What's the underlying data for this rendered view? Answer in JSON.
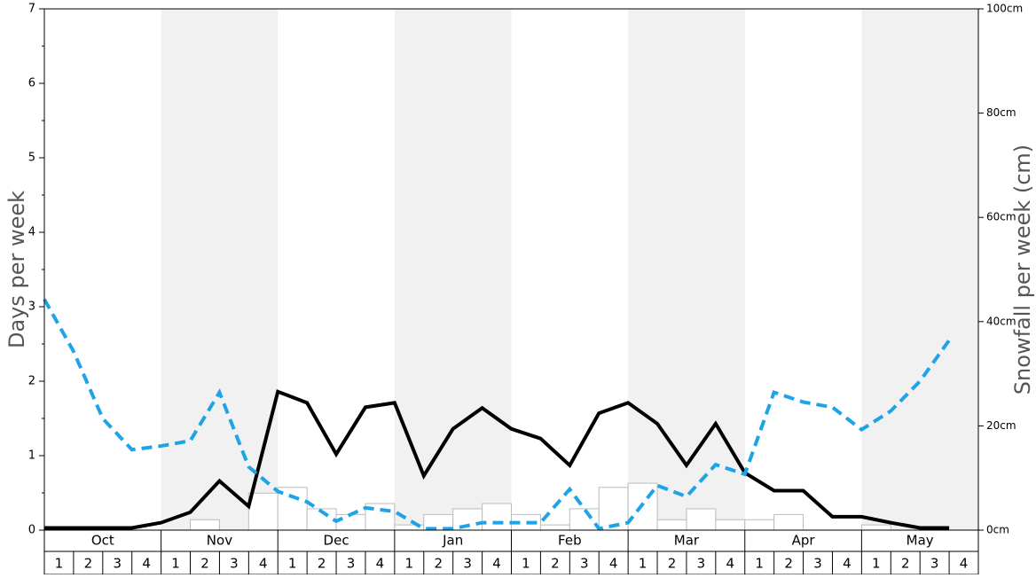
{
  "chart_data": {
    "type": "combo",
    "ylabel": "Days per week",
    "y2label": "Snowfall per week (cm)",
    "months": [
      "Oct",
      "Nov",
      "Dec",
      "Jan",
      "Feb",
      "Mar",
      "Apr",
      "May"
    ],
    "categories": [
      "1",
      "2",
      "3",
      "4",
      "1",
      "2",
      "3",
      "4",
      "1",
      "2",
      "3",
      "4",
      "1",
      "2",
      "3",
      "4",
      "1",
      "2",
      "3",
      "4",
      "1",
      "2",
      "3",
      "4",
      "1",
      "2",
      "3",
      "4",
      "1",
      "2",
      "3",
      "4"
    ],
    "ylim": [
      0,
      7
    ],
    "yticks": [
      0,
      1,
      2,
      3,
      4,
      5,
      6,
      7
    ],
    "y2lim": [
      0,
      100
    ],
    "y2ticks": [
      {
        "value": 0,
        "label": "0cm"
      },
      {
        "value": 20,
        "label": "20cm"
      },
      {
        "value": 40,
        "label": "40cm"
      },
      {
        "value": 60,
        "label": "60cm"
      },
      {
        "value": 80,
        "label": "80cm"
      },
      {
        "value": 100,
        "label": "100cm"
      }
    ],
    "series": [
      {
        "type": "bar",
        "axis": "y2",
        "color": "#ffffff",
        "values": [
          0,
          0,
          0,
          0,
          0,
          2,
          0,
          7.1,
          8.2,
          4.1,
          3,
          5.1,
          1,
          3,
          4.1,
          5.1,
          3,
          1,
          4.1,
          8.2,
          9,
          2,
          4.1,
          2,
          2,
          3,
          0,
          0,
          1,
          0,
          0,
          0
        ]
      },
      {
        "type": "line",
        "color": "#000000",
        "values": [
          0.03,
          0.03,
          0.03,
          0.03,
          0.1,
          0.24,
          0.66,
          0.32,
          1.86,
          1.71,
          1.02,
          1.65,
          1.71,
          0.73,
          1.36,
          1.64,
          1.36,
          1.23,
          0.87,
          1.57,
          1.71,
          1.43,
          0.87,
          1.43,
          0.77,
          0.53,
          0.53,
          0.18,
          0.18,
          0.1,
          0.03,
          0.03
        ]
      },
      {
        "type": "line",
        "dashed": true,
        "color": "#1ea4e6",
        "values": [
          3.1,
          2.4,
          1.5,
          1.08,
          1.13,
          1.2,
          1.85,
          0.85,
          0.52,
          0.38,
          0.12,
          0.3,
          0.25,
          0.02,
          0.02,
          0.1,
          0.1,
          0.1,
          0.55,
          0.02,
          0.1,
          0.6,
          0.45,
          0.88,
          0.75,
          1.85,
          1.72,
          1.65,
          1.35,
          1.6,
          2.0,
          2.55
        ]
      }
    ]
  }
}
